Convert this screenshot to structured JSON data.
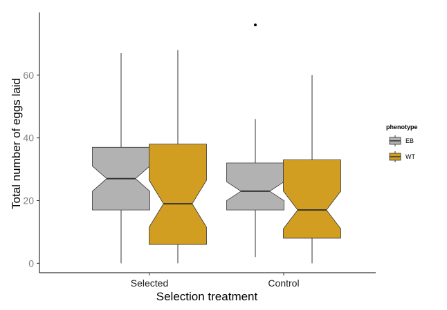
{
  "chart_data": {
    "type": "box",
    "xlabel": "Selection treatment",
    "ylabel": "Total number of eggs laid",
    "categories": [
      "Selected",
      "Control"
    ],
    "ylim": [
      -3,
      80
    ],
    "yticks": [
      0,
      20,
      40,
      60
    ],
    "grid": false,
    "legend": {
      "title": "phenotype",
      "position": "right"
    },
    "series": [
      {
        "name": "EB",
        "color": "#b2b2b2",
        "boxes": [
          {
            "category": "Selected",
            "min": 0,
            "q1": 17,
            "median": 27,
            "q3": 37,
            "max": 67,
            "notch_low": 23,
            "notch_high": 31,
            "outliers": []
          },
          {
            "category": "Control",
            "min": 2,
            "q1": 17,
            "median": 23,
            "q3": 32,
            "max": 46,
            "notch_low": 20,
            "notch_high": 26,
            "outliers": [
              76
            ]
          }
        ]
      },
      {
        "name": "WT",
        "color": "#d19e22",
        "boxes": [
          {
            "category": "Selected",
            "min": 0,
            "q1": 6,
            "median": 19,
            "q3": 38,
            "max": 68,
            "notch_low": 11.5,
            "notch_high": 26.5,
            "outliers": []
          },
          {
            "category": "Control",
            "min": 0,
            "q1": 8,
            "median": 17,
            "q3": 33,
            "max": 60,
            "notch_low": 11,
            "notch_high": 23,
            "outliers": []
          }
        ]
      }
    ]
  }
}
